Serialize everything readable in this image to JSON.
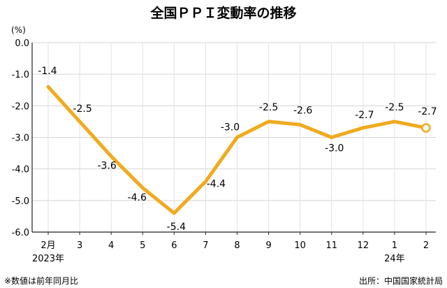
{
  "chart_data": {
    "type": "line",
    "title": "全国ＰＰＩ変動率の推移",
    "unit_label": "(%)",
    "x": [
      "2月",
      "3",
      "4",
      "5",
      "6",
      "7",
      "8",
      "9",
      "10",
      "11",
      "12",
      "1",
      "2"
    ],
    "x_sub": [
      "2023年",
      "",
      "",
      "",
      "",
      "",
      "",
      "",
      "",
      "",
      "",
      "24年",
      ""
    ],
    "series": [
      {
        "values": [
          -1.4,
          -2.5,
          -3.6,
          -4.6,
          -5.4,
          -4.4,
          -3.0,
          -2.5,
          -2.6,
          -3.0,
          -2.7,
          -2.5,
          -2.7
        ],
        "labels": [
          "-1.4",
          "-2.5",
          "-3.6",
          "-4.6",
          "-5.4",
          "-4.4",
          "-3.0",
          "-2.5",
          "-2.6",
          "-3.0",
          "-2.7",
          "-2.5",
          "-2.7"
        ],
        "color": "#F0AA1E"
      }
    ],
    "ylim": [
      -6.0,
      0.0
    ],
    "yticks": [
      "0.0",
      "-1.0",
      "-2.0",
      "-3.0",
      "-4.0",
      "-5.0",
      "-6.0"
    ],
    "grid": true,
    "footnote_left": "※数値は前年同月比",
    "footnote_right": "出所：中国国家統計局"
  }
}
